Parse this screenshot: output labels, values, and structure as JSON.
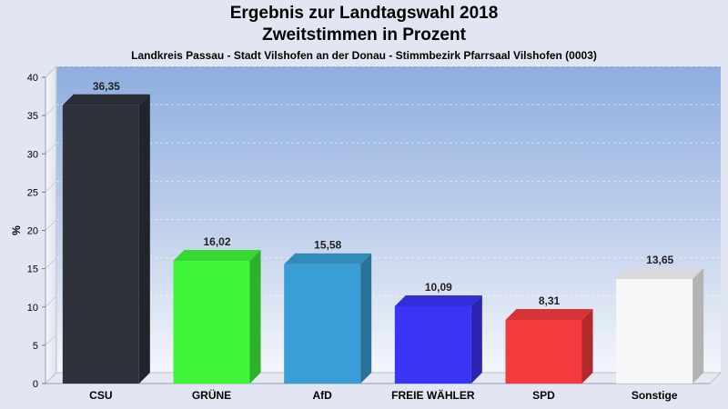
{
  "chart_data": {
    "type": "bar",
    "title": "Ergebnis zur Landtagswahl 2018",
    "subtitle_line": "Zweitstimmen in Prozent",
    "subtitle": "Landkreis Passau - Stadt Vilshofen an der Donau - Stimmbezirk Pfarrsaal Vilshofen (0003)",
    "ylabel": "%",
    "ylim": [
      0,
      40
    ],
    "yticks": [
      "0",
      "5",
      "10",
      "15",
      "20",
      "25",
      "30",
      "35",
      "40"
    ],
    "categories": [
      "CSU",
      "GRÜNE",
      "AfD",
      "FREIE WÄHLER",
      "SPD",
      "Sonstige"
    ],
    "values": [
      36.35,
      16.02,
      15.58,
      10.09,
      8.31,
      13.65
    ],
    "value_labels": [
      "36,35",
      "16,02",
      "15,58",
      "10,09",
      "8,31",
      "13,65"
    ],
    "colors": [
      "#2f323a",
      "#3ef53a",
      "#3a9ed6",
      "#3a35f5",
      "#f53a3e",
      "#f8f8fb"
    ],
    "grid": true,
    "legend": "none"
  }
}
